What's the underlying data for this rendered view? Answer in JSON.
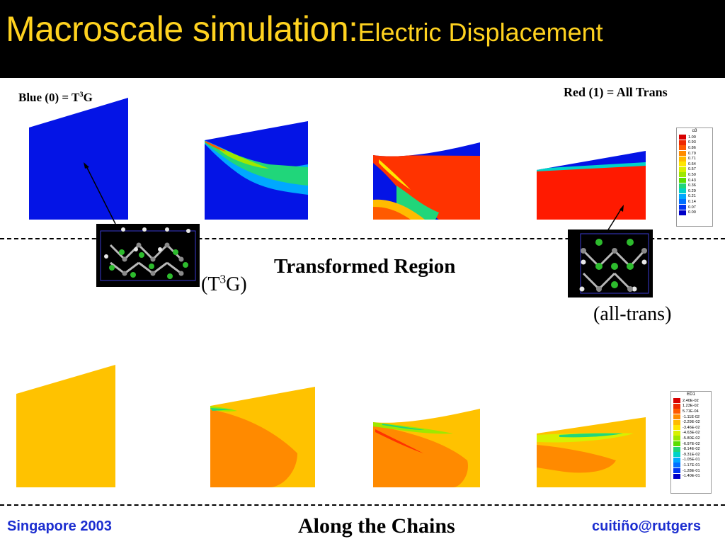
{
  "slide": {
    "title_main": "Macroscale simulation:",
    "title_sub": "Electric Displacement",
    "label_blue_prefix": "Blue (0) = T",
    "label_blue_sup": "3",
    "label_blue_suffix": "G",
    "label_red": "Red (1) = All Trans",
    "transformed_region": "Transformed Region",
    "t3g_prefix": "(T",
    "t3g_sup": "3",
    "t3g_suffix": "G)",
    "all_trans": "(all-trans)",
    "along_chains": "Along the Chains",
    "footer_left": "Singapore 2003",
    "footer_right": "cuitiño@rutgers"
  },
  "legend_top": {
    "title": "α3",
    "labels": [
      "1.00",
      "0.93",
      "0.86",
      "0.79",
      "0.71",
      "0.64",
      "0.57",
      "0.50",
      "0.43",
      "0.36",
      "0.29",
      "0.21",
      "0.14",
      "0.07",
      "0.00"
    ],
    "colors": [
      "#d80000",
      "#ee2a00",
      "#ff5a00",
      "#ff8c00",
      "#ffbb00",
      "#ffe600",
      "#d8f000",
      "#9ee800",
      "#5ade00",
      "#20d67a",
      "#00d2c8",
      "#00a8ff",
      "#0070ff",
      "#0034f2",
      "#0000c8"
    ]
  },
  "legend_bottom": {
    "title": "ED1",
    "labels": [
      "2.40E-02",
      "1.23E-02",
      "5.71E-04",
      "-1.11E-02",
      "-2.29E-02",
      "-3.46E-02",
      "-4.63E-02",
      "-5.80E-02",
      "-6.97E-02",
      "-8.14E-02",
      "-9.31E-02",
      "-1.05E-01",
      "-1.17E-01",
      "-1.28E-01",
      "-1.40E-01"
    ],
    "colors": [
      "#d80000",
      "#ee2a00",
      "#ff5a00",
      "#ff8c00",
      "#ffbb00",
      "#ffe600",
      "#d8f000",
      "#9ee800",
      "#5ade00",
      "#20d67a",
      "#00d2c8",
      "#00a8ff",
      "#0070ff",
      "#0034f2",
      "#0000c8"
    ]
  }
}
